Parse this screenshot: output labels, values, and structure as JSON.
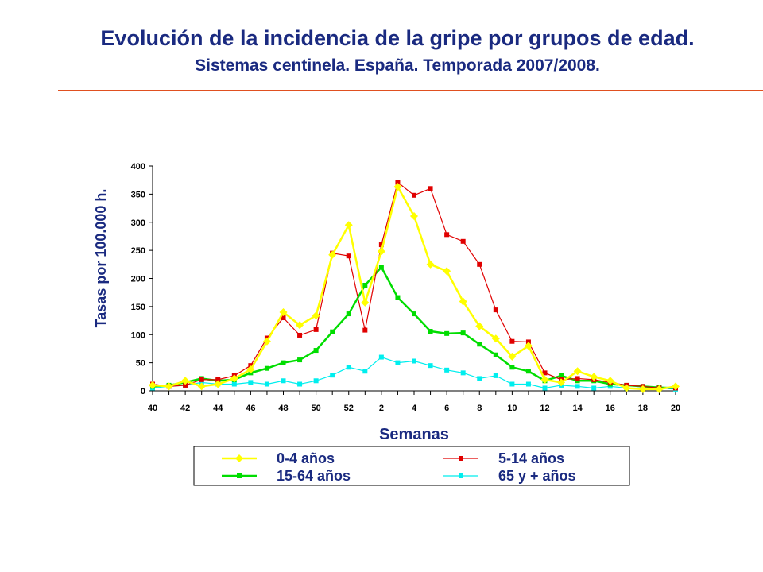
{
  "header": {
    "title": "Evolución de la incidencia de la gripe por grupos de edad.",
    "subtitle": "Sistemas centinela. España. Temporada 2007/2008."
  },
  "chart_data": {
    "type": "line",
    "xlabel": "Semanas",
    "ylabel": "Tasas por 100.000 h.",
    "ylim": [
      0,
      400
    ],
    "yticks": [
      0,
      50,
      100,
      150,
      200,
      250,
      300,
      350,
      400
    ],
    "x": [
      40,
      41,
      42,
      43,
      44,
      45,
      46,
      47,
      48,
      49,
      50,
      51,
      52,
      1,
      2,
      3,
      4,
      5,
      6,
      7,
      8,
      9,
      10,
      11,
      12,
      13,
      14,
      15,
      16,
      17,
      18,
      19,
      20
    ],
    "xtick_labels": [
      "40",
      "42",
      "44",
      "46",
      "48",
      "50",
      "52",
      "2",
      "4",
      "6",
      "8",
      "10",
      "12",
      "14",
      "16",
      "18",
      "20"
    ],
    "grid": false,
    "legend_position": "bottom",
    "series": [
      {
        "name": "0-4 años",
        "color": "#ffff00",
        "marker": "diamond",
        "values": [
          10,
          8,
          18,
          8,
          12,
          22,
          38,
          88,
          140,
          117,
          134,
          242,
          295,
          157,
          248,
          363,
          311,
          225,
          213,
          159,
          115,
          93,
          61,
          80,
          20,
          15,
          35,
          25,
          18,
          5,
          3,
          3,
          8
        ]
      },
      {
        "name": "5-14 años",
        "color": "#e00000",
        "marker": "square",
        "values": [
          12,
          8,
          10,
          20,
          20,
          27,
          45,
          94,
          130,
          99,
          109,
          245,
          240,
          108,
          260,
          371,
          348,
          360,
          278,
          266,
          225,
          144,
          88,
          87,
          32,
          20,
          22,
          20,
          15,
          10,
          8,
          5,
          5
        ]
      },
      {
        "name": "15-64 años",
        "color": "#00dd00",
        "marker": "square",
        "values": [
          8,
          10,
          15,
          22,
          18,
          20,
          32,
          40,
          50,
          55,
          72,
          105,
          137,
          188,
          220,
          166,
          137,
          106,
          102,
          103,
          83,
          64,
          42,
          35,
          18,
          27,
          18,
          18,
          12,
          10,
          8,
          6,
          5
        ]
      },
      {
        "name": "65 y + años",
        "color": "#00eeee",
        "marker": "square",
        "values": [
          5,
          8,
          10,
          15,
          12,
          12,
          15,
          12,
          18,
          12,
          18,
          28,
          42,
          35,
          60,
          50,
          53,
          45,
          37,
          32,
          22,
          27,
          12,
          12,
          5,
          10,
          8,
          5,
          8,
          5,
          5,
          5,
          3
        ]
      }
    ]
  }
}
